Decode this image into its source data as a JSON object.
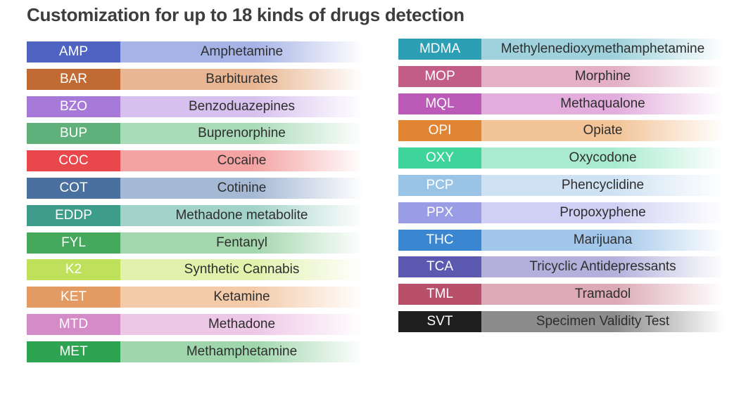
{
  "title": "Customization for up to 18 kinds of drugs detection",
  "left_items": [
    {
      "code": "AMP",
      "name": "Amphetamine",
      "color": "#4f64c2",
      "tint": "#a6b3e6"
    },
    {
      "code": "BAR",
      "name": "Barbiturates",
      "color": "#c26a33",
      "tint": "#e8b692"
    },
    {
      "code": "BZO",
      "name": "Benzoduazepines",
      "color": "#a779d8",
      "tint": "#d6c0ee"
    },
    {
      "code": "BUP",
      "name": "Buprenorphine",
      "color": "#5fb07a",
      "tint": "#a9dbb8"
    },
    {
      "code": "COC",
      "name": "Cocaine",
      "color": "#e8484c",
      "tint": "#f4a3a3"
    },
    {
      "code": "COT",
      "name": "Cotinine",
      "color": "#4a70a0",
      "tint": "#a5b9d4"
    },
    {
      "code": "EDDP",
      "name": "Methadone metabolite",
      "color": "#3e9c8a",
      "tint": "#a3d3c8"
    },
    {
      "code": "FYL",
      "name": "Fentanyl",
      "color": "#45a85d",
      "tint": "#a3d6ad"
    },
    {
      "code": "K2",
      "name": "Synthetic Cannabis",
      "color": "#bfe05b",
      "tint": "#e2f1ac"
    },
    {
      "code": "KET",
      "name": "Ketamine",
      "color": "#e49b63",
      "tint": "#f3cba9"
    },
    {
      "code": "MTD",
      "name": "Methadone",
      "color": "#d68bc9",
      "tint": "#edc7e6"
    },
    {
      "code": "MET",
      "name": "Methamphetamine",
      "color": "#2ea453",
      "tint": "#9fd6ac"
    }
  ],
  "right_items": [
    {
      "code": "MDMA",
      "name": "Methylenedioxymethamphetamine",
      "color": "#2c9fb4",
      "tint": "#9fd2dc"
    },
    {
      "code": "MOP",
      "name": "Morphine",
      "color": "#c25d86",
      "tint": "#e3b0c5"
    },
    {
      "code": "MQL",
      "name": "Methaqualone",
      "color": "#bc5ab8",
      "tint": "#e2addd"
    },
    {
      "code": "OPI",
      "name": "Opiate",
      "color": "#e08534",
      "tint": "#f2c497"
    },
    {
      "code": "OXY",
      "name": "Oxycodone",
      "color": "#3fd49a",
      "tint": "#a9ebd1"
    },
    {
      "code": "PCP",
      "name": "Phencyclidine",
      "color": "#9ac4e6",
      "tint": "#cfe2f3"
    },
    {
      "code": "PPX",
      "name": "Propoxyphene",
      "color": "#9a9de6",
      "tint": "#cfd0f3"
    },
    {
      "code": "THC",
      "name": "Marijuana",
      "color": "#3a86d0",
      "tint": "#a3c7ea"
    },
    {
      "code": "TCA",
      "name": "Tricyclic Antidepressants",
      "color": "#5c5ab0",
      "tint": "#b3b1db"
    },
    {
      "code": "TML",
      "name": "Tramadol",
      "color": "#b8506a",
      "tint": "#dca9b6"
    },
    {
      "code": "SVT",
      "name": "Specimen Validity Test",
      "color": "#1e1e1e",
      "tint": "#8c8c8c"
    }
  ]
}
